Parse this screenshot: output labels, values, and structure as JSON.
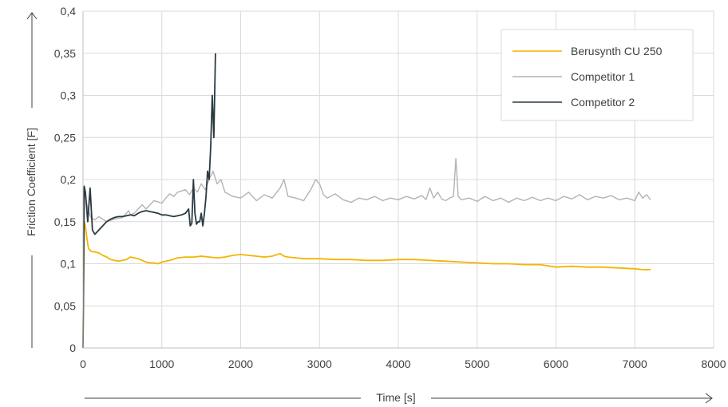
{
  "chart_data": {
    "type": "line",
    "title": "",
    "xlabel": "Time [s]",
    "ylabel": "Friction Coefficient [F]",
    "xlim": [
      0,
      8000
    ],
    "ylim": [
      0,
      0.4
    ],
    "x_ticks": [
      0,
      1000,
      2000,
      3000,
      4000,
      5000,
      6000,
      7000,
      8000
    ],
    "x_tick_labels": [
      "0",
      "1000",
      "2000",
      "3000",
      "4000",
      "5000",
      "6000",
      "7000",
      "8000"
    ],
    "y_ticks": [
      0,
      0.05,
      0.1,
      0.15,
      0.2,
      0.25,
      0.3,
      0.35,
      0.4
    ],
    "y_tick_labels": [
      "0",
      "0,05",
      "0,1",
      "0,15",
      "0,2",
      "0,25",
      "0,3",
      "0,35",
      "0,4"
    ],
    "grid": true,
    "legend_position": "top-right",
    "series": [
      {
        "name": "Berusynth CU 250",
        "color": "#f5b400",
        "x": [
          0,
          15,
          30,
          50,
          70,
          100,
          150,
          200,
          250,
          300,
          350,
          400,
          450,
          500,
          550,
          600,
          650,
          700,
          750,
          800,
          850,
          900,
          950,
          1000,
          1100,
          1200,
          1300,
          1400,
          1500,
          1600,
          1700,
          1800,
          1900,
          2000,
          2100,
          2200,
          2300,
          2400,
          2500,
          2550,
          2600,
          2700,
          2800,
          2900,
          3000,
          3200,
          3400,
          3600,
          3800,
          4000,
          4200,
          4400,
          4600,
          4800,
          5000,
          5200,
          5400,
          5600,
          5800,
          6000,
          6200,
          6400,
          6600,
          6800,
          7000,
          7100,
          7200
        ],
        "y": [
          0,
          0.15,
          0.145,
          0.13,
          0.118,
          0.115,
          0.114,
          0.113,
          0.11,
          0.108,
          0.105,
          0.104,
          0.103,
          0.104,
          0.105,
          0.108,
          0.107,
          0.106,
          0.104,
          0.102,
          0.101,
          0.101,
          0.1,
          0.102,
          0.104,
          0.107,
          0.108,
          0.108,
          0.109,
          0.108,
          0.107,
          0.108,
          0.11,
          0.111,
          0.11,
          0.109,
          0.108,
          0.109,
          0.112,
          0.109,
          0.108,
          0.107,
          0.106,
          0.106,
          0.106,
          0.105,
          0.105,
          0.104,
          0.104,
          0.105,
          0.105,
          0.104,
          0.103,
          0.102,
          0.101,
          0.1,
          0.1,
          0.099,
          0.099,
          0.096,
          0.097,
          0.096,
          0.096,
          0.095,
          0.094,
          0.093,
          0.093
        ]
      },
      {
        "name": "Competitor 1",
        "color": "#b3b3b3",
        "x": [
          0,
          30,
          60,
          100,
          150,
          200,
          300,
          400,
          500,
          580,
          600,
          650,
          700,
          750,
          800,
          850,
          900,
          1000,
          1050,
          1100,
          1150,
          1200,
          1300,
          1350,
          1400,
          1450,
          1500,
          1550,
          1600,
          1650,
          1700,
          1750,
          1800,
          1900,
          2000,
          2100,
          2200,
          2300,
          2400,
          2500,
          2550,
          2600,
          2700,
          2800,
          2900,
          2950,
          3000,
          3050,
          3100,
          3200,
          3300,
          3400,
          3500,
          3600,
          3700,
          3800,
          3900,
          4000,
          4100,
          4200,
          4300,
          4350,
          4400,
          4450,
          4500,
          4550,
          4600,
          4650,
          4700,
          4730,
          4760,
          4800,
          4900,
          5000,
          5100,
          5200,
          5300,
          5400,
          5500,
          5600,
          5700,
          5800,
          5900,
          6000,
          6100,
          6200,
          6300,
          6400,
          6500,
          6600,
          6700,
          6800,
          6900,
          7000,
          7050,
          7100,
          7150,
          7200
        ],
        "y": [
          0.19,
          0.18,
          0.165,
          0.155,
          0.152,
          0.156,
          0.15,
          0.153,
          0.155,
          0.163,
          0.158,
          0.16,
          0.165,
          0.17,
          0.165,
          0.17,
          0.175,
          0.172,
          0.178,
          0.183,
          0.18,
          0.185,
          0.188,
          0.182,
          0.19,
          0.185,
          0.195,
          0.188,
          0.2,
          0.21,
          0.195,
          0.2,
          0.185,
          0.18,
          0.178,
          0.185,
          0.175,
          0.182,
          0.178,
          0.19,
          0.2,
          0.18,
          0.178,
          0.175,
          0.19,
          0.2,
          0.195,
          0.182,
          0.178,
          0.183,
          0.176,
          0.173,
          0.178,
          0.176,
          0.18,
          0.175,
          0.178,
          0.176,
          0.18,
          0.177,
          0.181,
          0.176,
          0.19,
          0.178,
          0.185,
          0.177,
          0.175,
          0.178,
          0.18,
          0.225,
          0.18,
          0.176,
          0.178,
          0.174,
          0.18,
          0.175,
          0.178,
          0.173,
          0.178,
          0.175,
          0.179,
          0.175,
          0.178,
          0.175,
          0.18,
          0.177,
          0.182,
          0.176,
          0.18,
          0.178,
          0.181,
          0.176,
          0.178,
          0.175,
          0.185,
          0.178,
          0.182,
          0.176
        ]
      },
      {
        "name": "Competitor 2",
        "color": "#2b3a42",
        "x": [
          0,
          15,
          30,
          60,
          90,
          120,
          150,
          200,
          250,
          300,
          350,
          400,
          450,
          500,
          550,
          600,
          650,
          700,
          750,
          800,
          850,
          900,
          950,
          1000,
          1050,
          1100,
          1150,
          1200,
          1250,
          1300,
          1340,
          1360,
          1380,
          1400,
          1420,
          1440,
          1460,
          1480,
          1500,
          1520,
          1540,
          1560,
          1580,
          1600,
          1620,
          1640,
          1660,
          1680
        ],
        "y": [
          0,
          0.192,
          0.185,
          0.15,
          0.19,
          0.14,
          0.135,
          0.14,
          0.145,
          0.15,
          0.153,
          0.155,
          0.156,
          0.156,
          0.157,
          0.158,
          0.157,
          0.16,
          0.162,
          0.163,
          0.162,
          0.161,
          0.16,
          0.158,
          0.158,
          0.157,
          0.156,
          0.157,
          0.158,
          0.16,
          0.165,
          0.145,
          0.148,
          0.2,
          0.16,
          0.147,
          0.15,
          0.15,
          0.16,
          0.145,
          0.16,
          0.18,
          0.21,
          0.2,
          0.24,
          0.3,
          0.25,
          0.35
        ]
      }
    ]
  }
}
